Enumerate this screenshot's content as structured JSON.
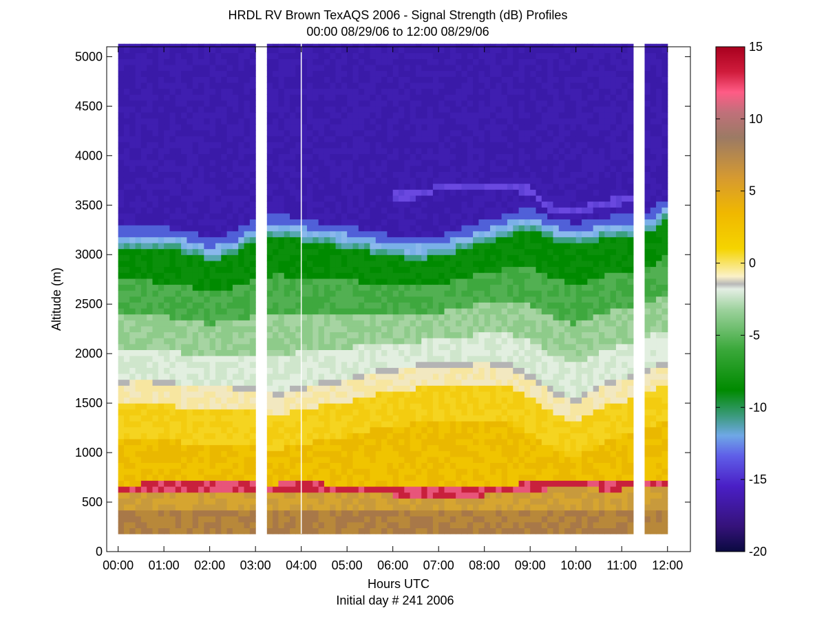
{
  "chart_data": {
    "type": "heatmap",
    "title": "HRDL RV Brown TexAQS 2006 - Signal Strength (dB) Profiles",
    "subtitle": "00:00 08/29/06 to 12:00 08/29/06",
    "xlabel": "Hours UTC",
    "xlabel2": "Initial day # 241  2006",
    "ylabel": "Altitude (m)",
    "xlim": [
      -0.25,
      12.5
    ],
    "ylim": [
      0,
      5100
    ],
    "x_ticks": [
      0,
      1,
      2,
      3,
      4,
      5,
      6,
      7,
      8,
      9,
      10,
      11,
      12
    ],
    "x_tick_labels": [
      "00:00",
      "01:00",
      "02:00",
      "03:00",
      "04:00",
      "05:00",
      "06:00",
      "07:00",
      "08:00",
      "09:00",
      "10:00",
      "11:00",
      "12:00"
    ],
    "y_ticks": [
      0,
      500,
      1000,
      1500,
      2000,
      2500,
      3000,
      3500,
      4000,
      4500,
      5000
    ],
    "y_tick_labels": [
      "0",
      "500",
      "1000",
      "1500",
      "2000",
      "2500",
      "3000",
      "3500",
      "4000",
      "4500",
      "5000"
    ],
    "colorbar": {
      "range": [
        -20,
        15
      ],
      "ticks": [
        15,
        10,
        5,
        0,
        -5,
        -10,
        -15,
        -20
      ],
      "tick_labels": [
        "15",
        "10",
        "5",
        "0",
        "-5",
        "-10",
        "-15",
        "-20"
      ]
    },
    "altitude_range_m": [
      180,
      5130
    ],
    "data_gaps_hours": [
      [
        3.0,
        3.25
      ],
      [
        11.3,
        11.5
      ]
    ],
    "profiles": {
      "time_hours": [
        0.0,
        0.5,
        1.0,
        1.5,
        2.0,
        2.5,
        3.0,
        3.5,
        4.0,
        4.5,
        5.0,
        5.5,
        6.0,
        6.5,
        7.0,
        7.5,
        8.0,
        8.5,
        9.0,
        9.5,
        10.0,
        10.5,
        11.0,
        11.5,
        12.0
      ],
      "aerosol_top_m": [
        1700,
        1720,
        1700,
        1650,
        1660,
        1650,
        1620,
        1580,
        1640,
        1680,
        1720,
        1780,
        1820,
        1850,
        1870,
        1880,
        1900,
        1870,
        1750,
        1600,
        1500,
        1650,
        1720,
        1800,
        1900
      ],
      "green_top_m": [
        3080,
        3080,
        3060,
        3020,
        2950,
        3000,
        3150,
        3200,
        3150,
        3100,
        3080,
        3030,
        2980,
        2960,
        2980,
        3050,
        3120,
        3200,
        3250,
        3150,
        3100,
        3150,
        3200,
        3200,
        3350
      ],
      "near_surface_layer_m": [
        650,
        650,
        660,
        660,
        670,
        660,
        650,
        650,
        660,
        650,
        640,
        640,
        630,
        620,
        620,
        620,
        630,
        640,
        660,
        700,
        700,
        690,
        690,
        700,
        700
      ],
      "upper_layer_m": [
        null,
        null,
        null,
        null,
        null,
        null,
        null,
        null,
        null,
        null,
        null,
        null,
        null,
        3600,
        3680,
        3700,
        3700,
        3700,
        3650,
        3450,
        3450,
        3500,
        3550,
        null,
        null
      ]
    }
  }
}
